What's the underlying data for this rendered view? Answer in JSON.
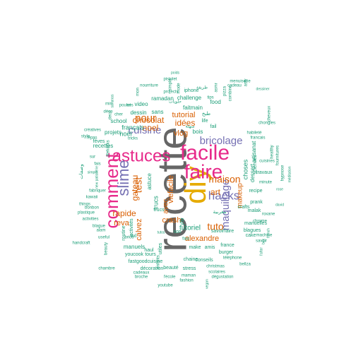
{
  "colors": {
    "c1": "#1b9e77",
    "c2": "#d95f02",
    "c3": "#7570b3",
    "c4": "#e7298a",
    "c5": "#666666",
    "c6": "#e6ab02"
  },
  "words": [
    {
      "id": "recette",
      "text": "recette",
      "color": "c5"
    },
    {
      "id": "diy",
      "text": "diy",
      "color": "c6"
    },
    {
      "id": "astuces",
      "text": "astuces",
      "color": "c4"
    },
    {
      "id": "faire",
      "text": "faire",
      "color": "c4"
    },
    {
      "id": "facile",
      "text": "facile",
      "color": "c4"
    },
    {
      "id": "comment",
      "text": "comment",
      "color": "c4"
    },
    {
      "id": "slime",
      "text": "slime",
      "color": "c3"
    },
    {
      "id": "hacks",
      "text": "hacks",
      "color": "c3"
    },
    {
      "id": "bricolage",
      "text": "bricolage",
      "color": "c3"
    },
    {
      "id": "maquillage",
      "text": "maquillage",
      "color": "c3"
    },
    {
      "id": "cuisine",
      "text": "cuisine",
      "color": "c3"
    },
    {
      "id": "pour",
      "text": "pour",
      "color": "c2"
    },
    {
      "id": "maison",
      "text": "maison",
      "color": "c2"
    },
    {
      "id": "test",
      "text": "test",
      "color": "c2"
    },
    {
      "id": "gateau",
      "text": "gateau",
      "color": "c2"
    },
    {
      "id": "tuto",
      "text": "tuto",
      "color": "c2"
    },
    {
      "id": "rapide",
      "text": "rapide",
      "color": "c2"
    },
    {
      "id": "chocolat",
      "text": "chocolat",
      "color": "c2"
    },
    {
      "id": "noel",
      "text": "noel",
      "color": "c2"
    },
    {
      "id": "idees",
      "text": "idées",
      "color": "c2"
    },
    {
      "id": "tutorial",
      "text": "tutorial",
      "color": "c2"
    },
    {
      "id": "vlog",
      "text": "vlog",
      "color": "c2"
    },
    {
      "id": "art",
      "text": "art",
      "color": "c2"
    },
    {
      "id": "crash",
      "text": "crash",
      "color": "c2"
    },
    {
      "id": "alexandre",
      "text": "alexandre",
      "color": "c2"
    },
    {
      "id": "reva",
      "text": "reva",
      "color": "c2"
    },
    {
      "id": "makeup",
      "text": "makeup",
      "color": "c2"
    },
    {
      "id": "vietasolo",
      "text": "viefacile",
      "color": "c2"
    },
    {
      "id": "avec",
      "text": "avec",
      "color": "c2"
    },
    {
      "id": "calvez",
      "text": "calvez",
      "color": "c2"
    },
    {
      "id": "tutoriel",
      "text": "tutoriel",
      "color": "c1"
    },
    {
      "id": "noel2",
      "text": "noël",
      "color": "c1"
    },
    {
      "id": "francais",
      "text": "français",
      "color": "c1"
    },
    {
      "id": "projets",
      "text": "projets",
      "color": "c1"
    },
    {
      "id": "recettes",
      "text": "recettes",
      "color": "c1"
    },
    {
      "id": "sans",
      "text": "sans",
      "color": "c1"
    },
    {
      "id": "dessin",
      "text": "dessin",
      "color": "c1"
    },
    {
      "id": "school",
      "text": "school",
      "color": "c1"
    },
    {
      "id": "video",
      "text": "video",
      "color": "c1"
    },
    {
      "id": "challenge",
      "text": "challenge",
      "color": "c1"
    },
    {
      "id": "ramadan",
      "text": "ramadan",
      "color": "c1"
    },
    {
      "id": "faitmain",
      "text": "faitmain",
      "color": "c1"
    },
    {
      "id": "food",
      "text": "food",
      "color": "c1"
    },
    {
      "id": "life",
      "text": "life",
      "color": "c1"
    },
    {
      "id": "fail",
      "text": "fail",
      "color": "c1"
    },
    {
      "id": "bois",
      "text": "bois",
      "color": "c1"
    },
    {
      "id": "choses",
      "text": "choses",
      "color": "c1"
    },
    {
      "id": "artisanat",
      "text": "artisanat",
      "color": "c1"
    },
    {
      "id": "dessert",
      "text": "dessert",
      "color": "c1"
    },
    {
      "id": "travaux",
      "text": "travaux",
      "color": "c1"
    },
    {
      "id": "recipe",
      "text": "recipe",
      "color": "c1"
    },
    {
      "id": "prank",
      "text": "prank",
      "color": "c1"
    },
    {
      "id": "malak",
      "text": "malak",
      "color": "c1"
    },
    {
      "id": "manuelles",
      "text": "manuelles",
      "color": "c1"
    },
    {
      "id": "blagues",
      "text": "blagues",
      "color": "c1"
    },
    {
      "id": "france",
      "text": "france",
      "color": "c1"
    },
    {
      "id": "burger",
      "text": "burger",
      "color": "c1"
    },
    {
      "id": "savoirfaire",
      "text": "savoirfaire",
      "color": "c1"
    },
    {
      "id": "amis",
      "text": "amis",
      "color": "c1"
    },
    {
      "id": "make",
      "text": "make",
      "color": "c1"
    },
    {
      "id": "conseils",
      "text": "conseils",
      "color": "c1"
    },
    {
      "id": "chaine",
      "text": "chaine",
      "color": "c1"
    },
    {
      "id": "tours",
      "text": "tours",
      "color": "c1"
    },
    {
      "id": "haul",
      "text": "haul",
      "color": "c1"
    },
    {
      "id": "manuels",
      "text": "manuels",
      "color": "c1"
    },
    {
      "id": "youcook",
      "text": "youcook",
      "color": "c1"
    },
    {
      "id": "fastgoodcuisine",
      "text": "fastgoodcuisine",
      "color": "c1"
    },
    {
      "id": "decoration",
      "text": "décoration",
      "color": "c1"
    },
    {
      "id": "beaute",
      "text": "beauté",
      "color": "c1"
    },
    {
      "id": "stress",
      "text": "stress",
      "color": "c1"
    },
    {
      "id": "cadeaux",
      "text": "cadeaux",
      "color": "c1"
    },
    {
      "id": "broche",
      "text": "broche",
      "color": "c1"
    },
    {
      "id": "ecole",
      "text": "l'école",
      "color": "c1"
    },
    {
      "id": "maman",
      "text": "maman",
      "color": "c1"
    },
    {
      "id": "fashion",
      "text": "fashion",
      "color": "c1"
    },
    {
      "id": "youtube",
      "text": "youtube",
      "color": "c1"
    },
    {
      "id": "scolaires",
      "text": "scolaires",
      "color": "c1"
    },
    {
      "id": "degustation",
      "text": "dégustation",
      "color": "c1"
    },
    {
      "id": "christmas",
      "text": "christmas",
      "color": "c1"
    },
    {
      "id": "telephone",
      "text": "téléphone",
      "color": "c1"
    },
    {
      "id": "bellza",
      "text": "bellza",
      "color": "c1"
    },
    {
      "id": "cake",
      "text": "cake",
      "color": "c1"
    },
    {
      "id": "savoir",
      "text": "savoir",
      "color": "c1"
    },
    {
      "id": "machine",
      "text": "machine",
      "color": "c1"
    },
    {
      "id": "roxane",
      "text": "roxane",
      "color": "c1"
    },
    {
      "id": "minute",
      "text": "minute",
      "color": "c1"
    },
    {
      "id": "cuisines",
      "text": "cuisines",
      "color": "c1"
    },
    {
      "id": "healthy",
      "text": "healthy",
      "color": "c1"
    },
    {
      "id": "francais2",
      "text": "francais",
      "color": "c1"
    },
    {
      "id": "habilete",
      "text": "habileté",
      "color": "c1"
    },
    {
      "id": "chongles",
      "text": "chongles",
      "color": "c1"
    },
    {
      "id": "cheveux",
      "text": "cheveux",
      "color": "c1"
    },
    {
      "id": "fournitures",
      "text": "fournitures",
      "color": "c1"
    },
    {
      "id": "hypnose",
      "text": "hypnose",
      "color": "c1"
    },
    {
      "id": "meditation",
      "text": "méditation",
      "color": "c1"
    },
    {
      "id": "rose",
      "text": "rose",
      "color": "c1"
    },
    {
      "id": "david",
      "text": "david",
      "color": "c1"
    },
    {
      "id": "iphone",
      "text": "iphone",
      "color": "c1"
    },
    {
      "id": "projects",
      "text": "projects",
      "color": "c1"
    },
    {
      "id": "nourriture",
      "text": "nourriture",
      "color": "c1"
    },
    {
      "id": "pistolet",
      "text": "pistolet",
      "color": "c1"
    },
    {
      "id": "poids",
      "text": "poids",
      "color": "c1"
    },
    {
      "id": "menuiserie",
      "text": "menuiserie",
      "color": "c1"
    },
    {
      "id": "cadeau",
      "text": "cadeau",
      "color": "c1"
    },
    {
      "id": "dessiner",
      "text": "dessiner",
      "color": "c1"
    },
    {
      "id": "poulet",
      "text": "poulet",
      "color": "c1"
    },
    {
      "id": "creatives",
      "text": "créatives",
      "color": "c1"
    },
    {
      "id": "repas",
      "text": "repas",
      "color": "c1"
    },
    {
      "id": "style",
      "text": "style",
      "color": "c1"
    },
    {
      "id": "fevres",
      "text": "fèves",
      "color": "c1"
    },
    {
      "id": "fabriquer",
      "text": "fabriquer",
      "color": "c1"
    },
    {
      "id": "kawaii",
      "text": "kawaii",
      "color": "c1"
    },
    {
      "id": "bonbon",
      "text": "bonbon",
      "color": "c1"
    },
    {
      "id": "plastique",
      "text": "plastique",
      "color": "c1"
    },
    {
      "id": "activities",
      "text": "activities",
      "color": "c1"
    },
    {
      "id": "alam",
      "text": "alam",
      "color": "c1"
    },
    {
      "id": "handcraft",
      "text": "handcraft",
      "color": "c1"
    },
    {
      "id": "useful",
      "text": "useful",
      "color": "c1"
    },
    {
      "id": "beauty",
      "text": "beauty",
      "color": "c1"
    },
    {
      "id": "chambre",
      "text": "chambre",
      "color": "c1"
    },
    {
      "id": "things",
      "text": "things",
      "color": "c1"
    },
    {
      "id": "blague",
      "text": "blague",
      "color": "c1"
    },
    {
      "id": "newpatisserie",
      "text": "new patisserie",
      "color": "c1"
    },
    {
      "id": "simple",
      "text": "simple",
      "color": "c1"
    },
    {
      "id": "mode",
      "text": "mode",
      "color": "c1"
    },
    {
      "id": "tips",
      "text": "tips",
      "color": "c1"
    },
    {
      "id": "avec2",
      "text": "astv",
      "color": "c1"
    },
    {
      "id": "combine",
      "text": "combine",
      "color": "c1"
    },
    {
      "id": "ecole2",
      "text": "tricks",
      "color": "c1"
    },
    {
      "id": "cher",
      "text": "cher",
      "color": "c1"
    },
    {
      "id": "min",
      "text": "min",
      "color": "c1"
    },
    {
      "id": "deco",
      "text": "déco",
      "color": "c1"
    },
    {
      "id": "deco2",
      "text": "deco",
      "color": "c1"
    },
    {
      "id": "sanans",
      "text": "sananas",
      "color": "c1"
    },
    {
      "id": "xxl",
      "text": "xxl",
      "color": "c1"
    },
    {
      "id": "astuce",
      "text": "astuce",
      "color": "c1"
    },
    {
      "id": "trucs",
      "text": "trucs",
      "color": "c1"
    },
    {
      "id": "trucs2",
      "text": "trucs",
      "color": "c1"
    },
    {
      "id": "activites",
      "text": "activités",
      "color": "c1"
    },
    {
      "id": "routine",
      "text": "routine",
      "color": "c1"
    },
    {
      "id": "ytb",
      "text": "ytb",
      "color": "c1"
    },
    {
      "id": "utiles",
      "text": "utiles",
      "color": "c1"
    },
    {
      "id": "tutos",
      "text": "tutos",
      "color": "c1"
    },
    {
      "id": "son",
      "text": "son",
      "color": "c1"
    },
    {
      "id": "lifehacks",
      "text": "lifehacks",
      "color": "c1"
    },
    {
      "id": "fais",
      "text": "fais",
      "color": "c1"
    },
    {
      "id": "simple2",
      "text": "simple",
      "color": "c1"
    },
    {
      "id": "brico",
      "text": "brico",
      "color": "c1"
    },
    {
      "id": "ses",
      "text": "ses",
      "color": "c1"
    },
    {
      "id": "sur",
      "text": "sur",
      "color": "c1"
    },
    {
      "id": "gratin",
      "text": "fast",
      "color": "c1"
    },
    {
      "id": "enfants",
      "text": "enfants",
      "color": "c1"
    },
    {
      "id": "ara1",
      "text": "وصفات",
      "color": "c1"
    },
    {
      "id": "ara2",
      "text": "طبخ",
      "color": "c1"
    },
    {
      "id": "ara3",
      "text": "حلويات",
      "color": "c1"
    },
    {
      "id": "ara4",
      "text": "سهلة",
      "color": "c1"
    },
    {
      "id": "ara5",
      "text": "طريقة",
      "color": "c1"
    },
    {
      "id": "ara6",
      "text": "مغربية",
      "color": "c1"
    },
    {
      "id": "lafter",
      "text": "l'after",
      "color": "c1"
    },
    {
      "id": "box",
      "text": "box",
      "color": "c1"
    },
    {
      "id": "french",
      "text": "french",
      "color": "c1"
    },
    {
      "id": "vegan",
      "text": "vegan",
      "color": "c1"
    },
    {
      "id": "crafts",
      "text": "crafts",
      "color": "c1"
    },
    {
      "id": "chrome",
      "text": "chrome",
      "color": "c1"
    },
    {
      "id": "sciences",
      "text": "sciences",
      "color": "c1"
    },
    {
      "id": "pizza",
      "text": "pizza",
      "color": "c1"
    },
    {
      "id": "asmr",
      "text": "asmr",
      "color": "c1"
    },
    {
      "id": "mon",
      "text": "mon",
      "color": "c1"
    }
  ]
}
